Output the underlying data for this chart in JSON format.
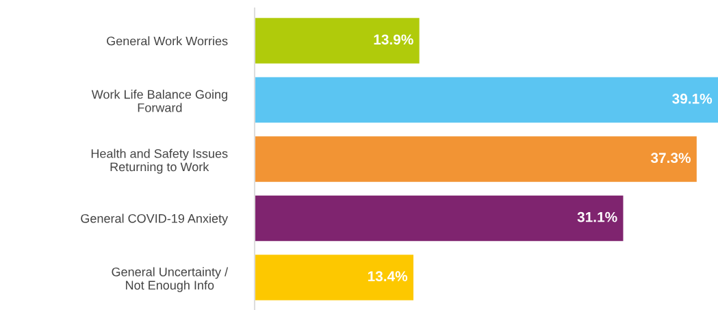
{
  "chart_data": {
    "type": "bar",
    "orientation": "horizontal",
    "categories": [
      "General Work Worries",
      "Work Life Balance Going\nForward",
      "Health and Safety Issues\nReturning to Work",
      "General COVID-19 Anxiety",
      "General Uncertainty /\nNot Enough Info"
    ],
    "values": [
      13.9,
      39.1,
      37.3,
      31.1,
      13.4
    ],
    "value_labels": [
      "13.9%",
      "39.1%",
      "37.3%",
      "31.1%",
      "13.4%"
    ],
    "colors": [
      "#b0cb0b",
      "#5bc5f2",
      "#f29434",
      "#7f246f",
      "#fdc800"
    ],
    "grid": false,
    "legend": false
  }
}
